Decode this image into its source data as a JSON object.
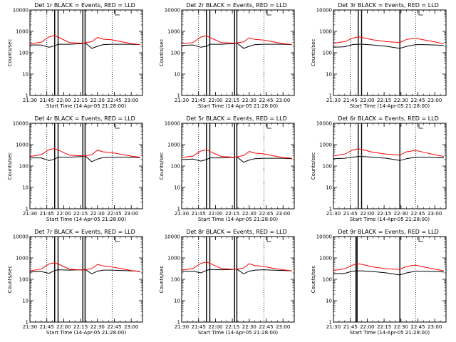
{
  "figure": {
    "colors": {
      "events": "#000000",
      "lld": "#ff0000",
      "background": "#ffffff"
    }
  },
  "chart_data": [
    {
      "type": "line",
      "title": "Det 1r BLACK = Events, RED = LLD",
      "xlabel": "Start Time (14-Apr-05 21:28:00)",
      "ylabel": "Counts/sec",
      "yscale": "log",
      "ylim": [
        1,
        10000
      ],
      "xlim": [
        "21:30",
        "23:10"
      ],
      "x_ticks": [
        "21:30",
        "21:45",
        "22:00",
        "22:15",
        "22:30",
        "22:45",
        "23:00"
      ],
      "y_ticks": [
        "1",
        "10",
        "100",
        "1000",
        "10000"
      ],
      "gaps": [
        "21:52-21:55",
        "22:17-22:19"
      ],
      "marker_lines": [
        "21:45",
        "22:43"
      ],
      "series": [
        {
          "name": "Events",
          "color": "#000000",
          "x": [
            "21:30",
            "21:40",
            "21:47",
            "21:52",
            "21:55",
            "22:05",
            "22:17",
            "22:19",
            "22:25",
            "22:30",
            "22:35",
            "22:43",
            "22:50",
            "23:00",
            "23:08"
          ],
          "values": [
            230,
            230,
            180,
            210,
            250,
            250,
            270,
            290,
            160,
            200,
            240,
            250,
            250,
            250,
            240
          ]
        },
        {
          "name": "LLD",
          "color": "#ff0000",
          "x": [
            "21:30",
            "21:40",
            "21:47",
            "21:52",
            "21:55",
            "22:05",
            "22:17",
            "22:19",
            "22:25",
            "22:30",
            "22:35",
            "22:43",
            "22:50",
            "23:00",
            "23:08"
          ],
          "values": [
            260,
            310,
            560,
            640,
            540,
            300,
            280,
            290,
            330,
            520,
            430,
            400,
            340,
            270,
            240
          ]
        }
      ]
    },
    {
      "type": "line",
      "title": "Det 2r BLACK = Events, RED = LLD",
      "xlabel": "Start Time (14-Apr-05 21:28:00)",
      "ylabel": "Counts/sec",
      "yscale": "log",
      "ylim": [
        1,
        10000
      ],
      "xlim": [
        "21:30",
        "23:10"
      ],
      "x_ticks": [
        "21:30",
        "21:45",
        "22:00",
        "22:15",
        "22:30",
        "22:45",
        "23:00"
      ],
      "y_ticks": [
        "1",
        "10",
        "100",
        "1000",
        "10000"
      ],
      "gaps": [
        "21:52-21:55",
        "22:17-22:19"
      ],
      "marker_lines": [
        "21:45",
        "22:43"
      ],
      "series": [
        {
          "name": "Events",
          "color": "#000000",
          "x": [
            "21:30",
            "21:40",
            "21:47",
            "21:52",
            "21:55",
            "22:05",
            "22:17",
            "22:19",
            "22:25",
            "22:30",
            "22:35",
            "22:43",
            "22:50",
            "23:00",
            "23:08"
          ],
          "values": [
            220,
            230,
            180,
            200,
            250,
            250,
            270,
            290,
            160,
            200,
            240,
            250,
            250,
            250,
            240
          ]
        },
        {
          "name": "LLD",
          "color": "#ff0000",
          "x": [
            "21:30",
            "21:40",
            "21:47",
            "21:52",
            "21:55",
            "22:05",
            "22:17",
            "22:19",
            "22:25",
            "22:30",
            "22:35",
            "22:43",
            "22:50",
            "23:00",
            "23:08"
          ],
          "values": [
            260,
            300,
            540,
            620,
            520,
            300,
            280,
            290,
            320,
            500,
            420,
            390,
            330,
            270,
            240
          ]
        }
      ]
    },
    {
      "type": "line",
      "title": "Det 3r BLACK = Events, RED = LLD",
      "xlabel": "Start Time (14-Apr-05 21:28:00)",
      "ylabel": "Counts/sec",
      "yscale": "log",
      "ylim": [
        1,
        10000
      ],
      "xlim": [
        "21:30",
        "23:10"
      ],
      "x_ticks": [
        "21:30",
        "21:45",
        "22:00",
        "22:15",
        "22:30",
        "22:45",
        "23:00"
      ],
      "y_ticks": [
        "1",
        "10",
        "100",
        "1000",
        "10000"
      ],
      "gaps": [
        "21:52-21:55",
        "22:29-22:29"
      ],
      "marker_lines": [
        "21:45",
        "22:43"
      ],
      "series": [
        {
          "name": "Events",
          "color": "#000000",
          "x": [
            "21:30",
            "21:40",
            "21:47",
            "21:52",
            "21:55",
            "22:05",
            "22:17",
            "22:29",
            "22:35",
            "22:43",
            "22:50",
            "23:00",
            "23:08"
          ],
          "values": [
            180,
            190,
            240,
            250,
            250,
            230,
            200,
            160,
            200,
            240,
            240,
            230,
            220
          ]
        },
        {
          "name": "LLD",
          "color": "#ff0000",
          "x": [
            "21:30",
            "21:40",
            "21:47",
            "21:52",
            "21:55",
            "22:05",
            "22:17",
            "22:29",
            "22:35",
            "22:43",
            "22:50",
            "23:00",
            "23:08"
          ],
          "values": [
            280,
            330,
            480,
            560,
            520,
            400,
            330,
            300,
            420,
            480,
            400,
            320,
            260
          ]
        }
      ]
    },
    {
      "type": "line",
      "title": "Det 4r BLACK = Events, RED = LLD",
      "xlabel": "Start Time (14-Apr-05 21:28:00)",
      "ylabel": "Counts/sec",
      "yscale": "log",
      "ylim": [
        1,
        10000
      ],
      "xlim": [
        "21:30",
        "23:10"
      ],
      "x_ticks": [
        "21:30",
        "21:45",
        "22:00",
        "22:15",
        "22:30",
        "22:45",
        "23:00"
      ],
      "y_ticks": [
        "1",
        "10",
        "100",
        "1000",
        "10000"
      ],
      "gaps": [
        "21:52-21:55",
        "22:17-22:19"
      ],
      "marker_lines": [
        "21:45",
        "22:43"
      ],
      "series": [
        {
          "name": "Events",
          "color": "#000000",
          "x": [
            "21:30",
            "21:40",
            "21:47",
            "21:52",
            "21:55",
            "22:05",
            "22:17",
            "22:19",
            "22:25",
            "22:30",
            "22:35",
            "22:43",
            "22:50",
            "23:00",
            "23:08"
          ],
          "values": [
            240,
            240,
            180,
            210,
            260,
            260,
            280,
            300,
            160,
            210,
            250,
            260,
            260,
            260,
            250
          ]
        },
        {
          "name": "LLD",
          "color": "#ff0000",
          "x": [
            "21:30",
            "21:40",
            "21:47",
            "21:52",
            "21:55",
            "22:05",
            "22:17",
            "22:19",
            "22:25",
            "22:30",
            "22:35",
            "22:43",
            "22:50",
            "23:00",
            "23:08"
          ],
          "values": [
            280,
            340,
            580,
            660,
            560,
            320,
            300,
            300,
            340,
            560,
            460,
            420,
            360,
            290,
            260
          ]
        }
      ]
    },
    {
      "type": "line",
      "title": "Det 5r BLACK = Events, RED = LLD",
      "xlabel": "Start Time (14-Apr-05 21:28:00)",
      "ylabel": "Counts/sec",
      "yscale": "log",
      "ylim": [
        1,
        10000
      ],
      "xlim": [
        "21:30",
        "23:10"
      ],
      "x_ticks": [
        "21:30",
        "21:45",
        "22:00",
        "22:15",
        "22:30",
        "22:45",
        "23:00"
      ],
      "y_ticks": [
        "1",
        "10",
        "100",
        "1000",
        "10000"
      ],
      "gaps": [
        "21:52-21:55",
        "22:17-22:19"
      ],
      "marker_lines": [
        "21:45",
        "22:43"
      ],
      "series": [
        {
          "name": "Events",
          "color": "#000000",
          "x": [
            "21:30",
            "21:40",
            "21:47",
            "21:52",
            "21:55",
            "22:05",
            "22:17",
            "22:19",
            "22:25",
            "22:30",
            "22:35",
            "22:43",
            "22:50",
            "23:00",
            "23:08"
          ],
          "values": [
            200,
            210,
            170,
            200,
            240,
            240,
            260,
            270,
            150,
            190,
            220,
            230,
            230,
            230,
            220
          ]
        },
        {
          "name": "LLD",
          "color": "#ff0000",
          "x": [
            "21:30",
            "21:40",
            "21:47",
            "21:52",
            "21:55",
            "22:05",
            "22:17",
            "22:19",
            "22:25",
            "22:30",
            "22:35",
            "22:43",
            "22:50",
            "23:00",
            "23:08"
          ],
          "values": [
            250,
            290,
            500,
            580,
            480,
            280,
            260,
            270,
            310,
            480,
            400,
            370,
            310,
            250,
            230
          ]
        }
      ]
    },
    {
      "type": "line",
      "title": "Det 6r BLACK = Events, RED = LLD",
      "xlabel": "Start Time (14-Apr-05 21:28:00)",
      "ylabel": "Counts/sec",
      "yscale": "log",
      "ylim": [
        1,
        10000
      ],
      "xlim": [
        "21:30",
        "23:10"
      ],
      "x_ticks": [
        "21:30",
        "21:45",
        "22:00",
        "22:15",
        "22:30",
        "22:45",
        "23:00"
      ],
      "y_ticks": [
        "1",
        "10",
        "100",
        "1000",
        "10000"
      ],
      "gaps": [
        "21:52-21:55",
        "22:29-22:29"
      ],
      "marker_lines": [
        "21:45",
        "22:43"
      ],
      "series": [
        {
          "name": "Events",
          "color": "#000000",
          "x": [
            "21:30",
            "21:40",
            "21:47",
            "21:52",
            "21:55",
            "22:05",
            "22:17",
            "22:29",
            "22:35",
            "22:43",
            "22:50",
            "23:00",
            "23:08"
          ],
          "values": [
            220,
            230,
            260,
            280,
            280,
            260,
            230,
            180,
            220,
            260,
            260,
            250,
            240
          ]
        },
        {
          "name": "LLD",
          "color": "#ff0000",
          "x": [
            "21:30",
            "21:40",
            "21:47",
            "21:52",
            "21:55",
            "22:05",
            "22:17",
            "22:29",
            "22:35",
            "22:43",
            "22:50",
            "23:00",
            "23:08"
          ],
          "values": [
            300,
            360,
            560,
            640,
            600,
            440,
            360,
            320,
            460,
            540,
            440,
            340,
            280
          ]
        }
      ]
    },
    {
      "type": "line",
      "title": "Det 7r BLACK = Events, RED = LLD",
      "xlabel": "Start Time (14-Apr-05 21:28:00)",
      "ylabel": "Counts/sec",
      "yscale": "log",
      "ylim": [
        1,
        10000
      ],
      "xlim": [
        "21:30",
        "23:10"
      ],
      "x_ticks": [
        "21:30",
        "21:45",
        "22:00",
        "22:15",
        "22:30",
        "22:45",
        "23:00"
      ],
      "y_ticks": [
        "1",
        "10",
        "100",
        "1000",
        "10000"
      ],
      "gaps": [
        "21:52-21:55",
        "22:17-22:19"
      ],
      "marker_lines": [
        "21:45",
        "22:43"
      ],
      "series": [
        {
          "name": "Events",
          "color": "#000000",
          "x": [
            "21:30",
            "21:40",
            "21:47",
            "21:52",
            "21:55",
            "22:05",
            "22:17",
            "22:19",
            "22:25",
            "22:30",
            "22:35",
            "22:43",
            "22:50",
            "23:00",
            "23:08"
          ],
          "values": [
            220,
            230,
            190,
            260,
            280,
            270,
            280,
            290,
            180,
            240,
            270,
            270,
            260,
            250,
            240
          ]
        },
        {
          "name": "LLD",
          "color": "#ff0000",
          "x": [
            "21:30",
            "21:40",
            "21:47",
            "21:52",
            "21:55",
            "22:05",
            "22:17",
            "22:19",
            "22:25",
            "22:30",
            "22:35",
            "22:43",
            "22:50",
            "23:00",
            "23:08"
          ],
          "values": [
            250,
            300,
            520,
            600,
            520,
            300,
            270,
            280,
            320,
            500,
            420,
            380,
            320,
            260,
            230
          ]
        }
      ]
    },
    {
      "type": "line",
      "title": "Det 8r BLACK = Events, RED = LLD",
      "xlabel": "Start Time (14-Apr-05 21:28:00)",
      "ylabel": "Counts/sec",
      "yscale": "log",
      "ylim": [
        1,
        10000
      ],
      "xlim": [
        "21:30",
        "23:10"
      ],
      "x_ticks": [
        "21:30",
        "21:45",
        "22:00",
        "22:15",
        "22:30",
        "22:45",
        "23:00"
      ],
      "y_ticks": [
        "1",
        "10",
        "100",
        "1000",
        "10000"
      ],
      "gaps": [
        "21:52-21:55",
        "22:17-22:19"
      ],
      "marker_lines": [
        "21:45",
        "22:43"
      ],
      "series": [
        {
          "name": "Events",
          "color": "#000000",
          "x": [
            "21:30",
            "21:40",
            "21:47",
            "21:52",
            "21:55",
            "22:05",
            "22:17",
            "22:19",
            "22:25",
            "22:30",
            "22:35",
            "22:43",
            "22:50",
            "23:00",
            "23:08"
          ],
          "values": [
            240,
            240,
            200,
            260,
            290,
            280,
            290,
            300,
            180,
            240,
            270,
            280,
            270,
            260,
            250
          ]
        },
        {
          "name": "LLD",
          "color": "#ff0000",
          "x": [
            "21:30",
            "21:40",
            "21:47",
            "21:52",
            "21:55",
            "22:05",
            "22:17",
            "22:19",
            "22:25",
            "22:30",
            "22:35",
            "22:43",
            "22:50",
            "23:00",
            "23:08"
          ],
          "values": [
            270,
            320,
            560,
            640,
            560,
            320,
            290,
            300,
            340,
            540,
            440,
            400,
            340,
            280,
            250
          ]
        }
      ]
    },
    {
      "type": "line",
      "title": "Det 9r BLACK = Events, RED = LLD",
      "xlabel": "Start Time (14-Apr-05 21:28:00)",
      "ylabel": "Counts/sec",
      "yscale": "log",
      "ylim": [
        1,
        10000
      ],
      "xlim": [
        "21:30",
        "23:10"
      ],
      "x_ticks": [
        "21:30",
        "21:45",
        "22:00",
        "22:15",
        "22:30",
        "22:45",
        "23:00"
      ],
      "y_ticks": [
        "1",
        "10",
        "100",
        "1000",
        "10000"
      ],
      "gaps": [
        "21:50-21:51",
        "22:29-22:29"
      ],
      "marker_lines": [
        "21:45",
        "22:43"
      ],
      "series": [
        {
          "name": "Events",
          "color": "#000000",
          "x": [
            "21:30",
            "21:40",
            "21:47",
            "21:51",
            "21:55",
            "22:05",
            "22:17",
            "22:29",
            "22:35",
            "22:43",
            "22:50",
            "23:00",
            "23:08"
          ],
          "values": [
            180,
            190,
            240,
            250,
            250,
            230,
            200,
            160,
            200,
            240,
            240,
            230,
            220
          ]
        },
        {
          "name": "LLD",
          "color": "#ff0000",
          "x": [
            "21:30",
            "21:40",
            "21:47",
            "21:51",
            "21:55",
            "22:05",
            "22:17",
            "22:29",
            "22:35",
            "22:43",
            "22:50",
            "23:00",
            "23:08"
          ],
          "values": [
            260,
            310,
            460,
            540,
            500,
            380,
            310,
            290,
            400,
            460,
            380,
            300,
            250
          ]
        }
      ]
    }
  ]
}
